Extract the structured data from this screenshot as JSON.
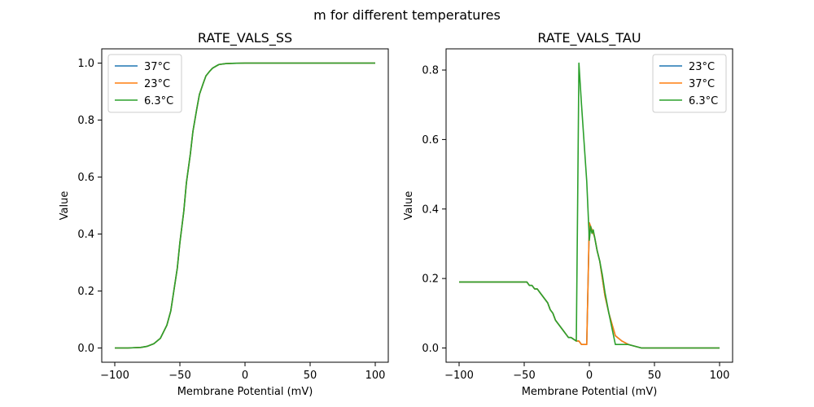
{
  "figure": {
    "suptitle": "m for different temperatures"
  },
  "chart_data": [
    {
      "type": "line",
      "title": "RATE_VALS_SS",
      "xlabel": "Membrane Potential (mV)",
      "ylabel": "Value",
      "xlim": [
        -110,
        110
      ],
      "ylim": [
        -0.05,
        1.05
      ],
      "xticks": [
        -100,
        -50,
        0,
        50,
        100
      ],
      "yticks": [
        0.0,
        0.2,
        0.4,
        0.6,
        0.8,
        1.0
      ],
      "xtick_labels": [
        "−100",
        "−50",
        "0",
        "50",
        "100"
      ],
      "ytick_labels": [
        "0.0",
        "0.2",
        "0.4",
        "0.6",
        "0.8",
        "1.0"
      ],
      "legend_position": "upper-left",
      "grid": false,
      "series": [
        {
          "name": "37°C",
          "color": "#1f77b4",
          "x": [
            -100,
            -90,
            -80,
            -75,
            -70,
            -65,
            -60,
            -57,
            -55,
            -52,
            -50,
            -47,
            -45,
            -42,
            -40,
            -37,
            -35,
            -32,
            -30,
            -27,
            -25,
            -22,
            -20,
            -15,
            -10,
            0,
            20,
            50,
            100
          ],
          "y": [
            0.0,
            0.0,
            0.002,
            0.006,
            0.015,
            0.034,
            0.08,
            0.13,
            0.19,
            0.28,
            0.37,
            0.48,
            0.58,
            0.68,
            0.76,
            0.84,
            0.89,
            0.93,
            0.955,
            0.972,
            0.982,
            0.99,
            0.995,
            0.998,
            0.999,
            1.0,
            1.0,
            1.0,
            1.0
          ]
        },
        {
          "name": "23°C",
          "color": "#ff7f0e",
          "x": [
            -100,
            -90,
            -80,
            -75,
            -70,
            -65,
            -60,
            -57,
            -55,
            -52,
            -50,
            -47,
            -45,
            -42,
            -40,
            -37,
            -35,
            -32,
            -30,
            -27,
            -25,
            -22,
            -20,
            -15,
            -10,
            0,
            20,
            50,
            100
          ],
          "y": [
            0.0,
            0.0,
            0.002,
            0.006,
            0.015,
            0.034,
            0.08,
            0.13,
            0.19,
            0.28,
            0.37,
            0.48,
            0.58,
            0.68,
            0.76,
            0.84,
            0.89,
            0.93,
            0.955,
            0.972,
            0.982,
            0.99,
            0.995,
            0.998,
            0.999,
            1.0,
            1.0,
            1.0,
            1.0
          ]
        },
        {
          "name": "6.3°C",
          "color": "#2ca02c",
          "x": [
            -100,
            -90,
            -80,
            -75,
            -70,
            -65,
            -60,
            -57,
            -55,
            -52,
            -50,
            -47,
            -45,
            -42,
            -40,
            -37,
            -35,
            -32,
            -30,
            -27,
            -25,
            -22,
            -20,
            -15,
            -10,
            0,
            20,
            50,
            100
          ],
          "y": [
            0.0,
            0.0,
            0.002,
            0.006,
            0.015,
            0.034,
            0.08,
            0.13,
            0.19,
            0.28,
            0.37,
            0.48,
            0.58,
            0.68,
            0.76,
            0.84,
            0.89,
            0.93,
            0.955,
            0.972,
            0.982,
            0.99,
            0.995,
            0.998,
            0.999,
            1.0,
            1.0,
            1.0,
            1.0
          ]
        }
      ]
    },
    {
      "type": "line",
      "title": "RATE_VALS_TAU",
      "xlabel": "Membrane Potential (mV)",
      "ylabel": "Value",
      "xlim": [
        -110,
        110
      ],
      "ylim": [
        -0.041,
        0.861
      ],
      "xticks": [
        -100,
        -50,
        0,
        50,
        100
      ],
      "yticks": [
        0.0,
        0.2,
        0.4,
        0.6,
        0.8
      ],
      "xtick_labels": [
        "−100",
        "−50",
        "0",
        "50",
        "100"
      ],
      "ytick_labels": [
        "0.0",
        "0.2",
        "0.4",
        "0.6",
        "0.8"
      ],
      "legend_position": "upper-right",
      "grid": false,
      "series": [
        {
          "name": "23°C",
          "color": "#1f77b4",
          "x": [
            -100,
            -48,
            -46,
            -44,
            -42,
            -40,
            -38,
            -36,
            -34,
            -32,
            -30,
            -28,
            -26,
            -24,
            -22,
            -20,
            -18,
            -16,
            -14,
            -12,
            -10,
            -8,
            -6,
            -4,
            -2,
            0,
            1,
            2,
            3,
            4,
            6,
            8,
            10,
            12,
            15,
            20,
            25,
            30,
            40,
            100
          ],
          "y": [
            0.19,
            0.19,
            0.18,
            0.18,
            0.17,
            0.17,
            0.16,
            0.15,
            0.14,
            0.13,
            0.11,
            0.1,
            0.08,
            0.07,
            0.06,
            0.05,
            0.04,
            0.03,
            0.03,
            0.025,
            0.02,
            0.02,
            0.01,
            0.01,
            0.01,
            0.36,
            0.35,
            0.34,
            0.33,
            0.32,
            0.28,
            0.25,
            0.2,
            0.15,
            0.1,
            0.035,
            0.02,
            0.01,
            0.0,
            0.0
          ]
        },
        {
          "name": "37°C",
          "color": "#ff7f0e",
          "x": [
            -100,
            -48,
            -46,
            -44,
            -42,
            -40,
            -38,
            -36,
            -34,
            -32,
            -30,
            -28,
            -26,
            -24,
            -22,
            -20,
            -18,
            -16,
            -14,
            -12,
            -10,
            -8,
            -6,
            -4,
            -2,
            0,
            1,
            2,
            3,
            4,
            6,
            8,
            10,
            12,
            15,
            20,
            25,
            30,
            40,
            100
          ],
          "y": [
            0.19,
            0.19,
            0.18,
            0.18,
            0.17,
            0.17,
            0.16,
            0.15,
            0.14,
            0.13,
            0.11,
            0.1,
            0.08,
            0.07,
            0.06,
            0.05,
            0.04,
            0.03,
            0.03,
            0.025,
            0.02,
            0.02,
            0.01,
            0.01,
            0.01,
            0.36,
            0.35,
            0.34,
            0.33,
            0.32,
            0.28,
            0.25,
            0.2,
            0.15,
            0.1,
            0.035,
            0.02,
            0.01,
            0.0,
            0.0
          ]
        },
        {
          "name": "6.3°C",
          "color": "#2ca02c",
          "x": [
            -100,
            -48,
            -46,
            -44,
            -42,
            -40,
            -38,
            -36,
            -34,
            -32,
            -30,
            -28,
            -26,
            -24,
            -22,
            -20,
            -18,
            -16,
            -14,
            -12,
            -10,
            -9,
            -8,
            -6,
            -4,
            -2,
            0,
            1,
            2,
            3,
            4,
            6,
            8,
            10,
            12,
            15,
            20,
            25,
            30,
            40,
            100
          ],
          "y": [
            0.19,
            0.19,
            0.18,
            0.18,
            0.17,
            0.17,
            0.16,
            0.15,
            0.14,
            0.13,
            0.11,
            0.1,
            0.08,
            0.07,
            0.06,
            0.05,
            0.04,
            0.03,
            0.03,
            0.025,
            0.02,
            0.41,
            0.82,
            0.7,
            0.59,
            0.48,
            0.31,
            0.35,
            0.33,
            0.34,
            0.32,
            0.28,
            0.25,
            0.21,
            0.16,
            0.1,
            0.01,
            0.01,
            0.01,
            0.0,
            0.0
          ]
        }
      ]
    }
  ]
}
